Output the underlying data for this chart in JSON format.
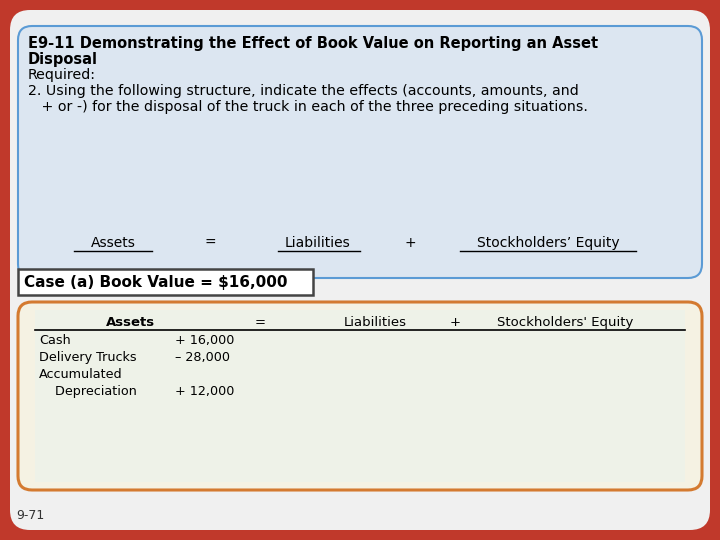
{
  "bg_color": "#c0392b",
  "slide_bg": "#f0f0f0",
  "title_box_bg": "#dce6f1",
  "title_box_border": "#5b9bd5",
  "title_line1": "E9-11 Demonstrating the Effect of Book Value on Reporting an Asset",
  "title_line2": "Disposal",
  "title_line3": "Required:",
  "title_line4": "2. Using the following structure, indicate the effects (accounts, amounts, and",
  "title_line5": "   + or -) for the disposal of the truck in each of the three preceding situations.",
  "equation_assets": "Assets",
  "equation_eq": "=",
  "equation_liabilities": "Liabilities",
  "equation_plus": "+",
  "equation_equity": "Stockholders’ Equity",
  "case_label": "Case (a) Book Value = $16,000",
  "case_label_bg": "#ffffff",
  "case_label_border": "#444444",
  "table_box_bg": "#f5f2e3",
  "table_box_border": "#d47a30",
  "table_inner_bg": "#eef2e8",
  "table_header_assets": "Assets",
  "table_header_eq": "=",
  "table_header_liabilities": "Liabilities",
  "table_header_plus": "+",
  "table_header_equity": "Stockholders' Equity",
  "row1_label": "Cash",
  "row1_amount": "+ 16,000",
  "row2_label": "Delivery Trucks",
  "row2_amount": "– 28,000",
  "row3_label": "Accumulated",
  "row4_label": "    Depreciation",
  "row4_amount": "+ 12,000",
  "footer": "9-71",
  "font_family": "DejaVu Sans"
}
